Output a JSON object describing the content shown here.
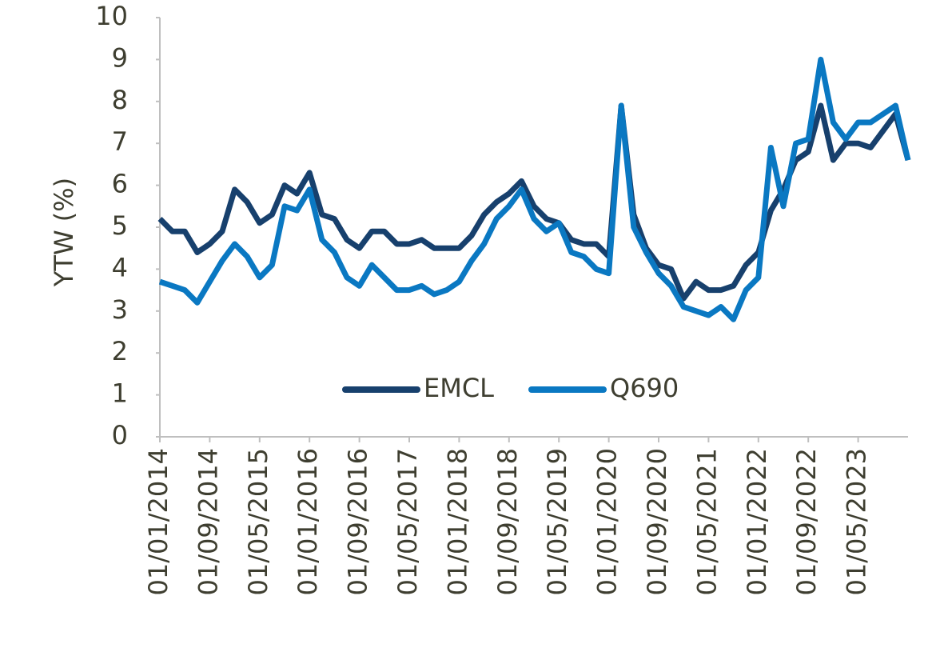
{
  "chart_data": {
    "type": "line",
    "y_label": "YTW (%)",
    "categories": [
      "01/01/2014",
      null,
      null,
      null,
      "01/09/2014",
      null,
      null,
      null,
      "01/05/2015",
      null,
      null,
      null,
      "01/01/2016",
      null,
      null,
      null,
      "01/09/2016",
      null,
      null,
      null,
      "01/05/2017",
      null,
      null,
      null,
      "01/01/2018",
      null,
      null,
      null,
      "01/09/2018",
      null,
      null,
      null,
      "01/05/2019",
      null,
      null,
      null,
      "01/01/2020",
      null,
      null,
      null,
      "01/09/2020",
      null,
      null,
      null,
      "01/05/2021",
      null,
      null,
      null,
      "01/01/2022",
      null,
      null,
      null,
      "01/09/2022",
      null,
      null,
      null,
      "01/05/2023",
      null,
      null,
      null,
      null
    ],
    "series": [
      {
        "name": "EMCL",
        "color": "#17406d",
        "values": [
          5.2,
          4.9,
          4.9,
          4.4,
          4.6,
          4.9,
          5.9,
          5.6,
          5.1,
          5.3,
          6.0,
          5.8,
          6.3,
          5.3,
          5.2,
          4.7,
          4.5,
          4.9,
          4.9,
          4.6,
          4.6,
          4.7,
          4.5,
          4.5,
          4.5,
          4.8,
          5.3,
          5.6,
          5.8,
          6.1,
          5.5,
          5.2,
          5.1,
          4.7,
          4.6,
          4.6,
          4.3,
          7.9,
          5.3,
          4.5,
          4.1,
          4.0,
          3.3,
          3.7,
          3.5,
          3.5,
          3.6,
          4.1,
          4.4,
          5.4,
          5.9,
          6.6,
          6.8,
          7.9,
          6.6,
          7.0,
          7.0,
          6.9,
          7.3,
          7.7,
          6.6
        ]
      },
      {
        "name": "Q690",
        "color": "#0a78c2",
        "values": [
          3.7,
          3.6,
          3.5,
          3.2,
          3.7,
          4.2,
          4.6,
          4.3,
          3.8,
          4.1,
          5.5,
          5.4,
          5.9,
          4.7,
          4.4,
          3.8,
          3.6,
          4.1,
          3.8,
          3.5,
          3.5,
          3.6,
          3.4,
          3.5,
          3.7,
          4.2,
          4.6,
          5.2,
          5.5,
          5.9,
          5.2,
          4.9,
          5.1,
          4.4,
          4.3,
          4.0,
          3.9,
          7.9,
          5.0,
          4.4,
          3.9,
          3.6,
          3.1,
          3.0,
          2.9,
          3.1,
          2.8,
          3.5,
          3.8,
          6.9,
          5.5,
          7.0,
          7.1,
          9.0,
          7.5,
          7.1,
          7.5,
          7.5,
          7.7,
          7.9,
          6.6
        ]
      }
    ],
    "ylim": [
      0,
      10
    ],
    "yticks": [
      0,
      1,
      2,
      3,
      4,
      5,
      6,
      7,
      8,
      9,
      10
    ],
    "grid": false,
    "legend": "center"
  }
}
